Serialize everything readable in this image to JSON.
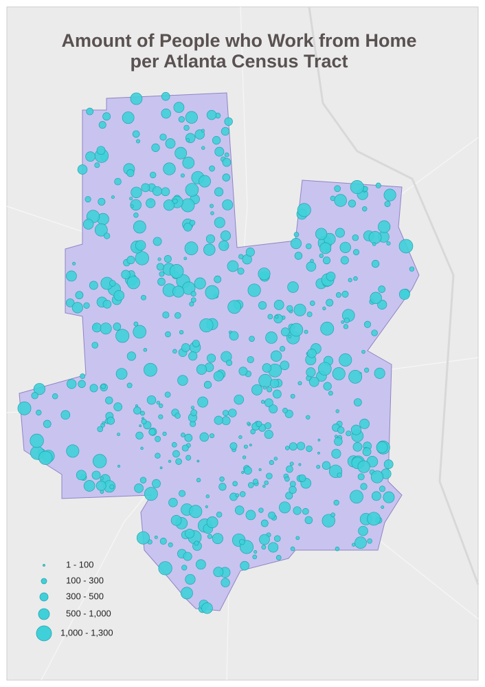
{
  "title": [
    "Amount of People who Work from Home",
    "per Atlanta Census Tract"
  ],
  "legend": [
    "1 - 100",
    "100 - 300",
    "300 - 500",
    "500 - 1,000",
    "1,000 - 1,300"
  ]
}
